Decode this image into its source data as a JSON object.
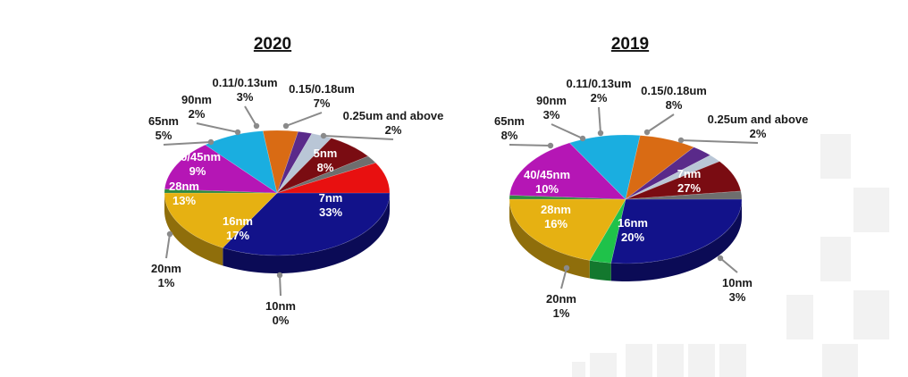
{
  "chart_data": [
    {
      "type": "pie",
      "title": "2020",
      "categories": [
        "7nm",
        "10nm",
        "16nm",
        "20nm",
        "28nm",
        "40/45nm",
        "65nm",
        "90nm",
        "0.11/0.13um",
        "0.15/0.18um",
        "0.25um and above",
        "5nm"
      ],
      "values": [
        33,
        0,
        17,
        1,
        13,
        9,
        5,
        2,
        3,
        7,
        2,
        8
      ],
      "value_labels": [
        "33%",
        "0%",
        "17%",
        "1%",
        "13%",
        "9%",
        "5%",
        "2%",
        "3%",
        "7%",
        "2%",
        "8%"
      ],
      "colors": [
        "#12128a",
        "#2fa84f",
        "#e6b112",
        "#2f8a3f",
        "#b516b5",
        "#1aaee0",
        "#d96b14",
        "#5a2a8a",
        "#b9c6d6",
        "#7a0c12",
        "#6e6e6e",
        "#e81010"
      ],
      "legend": "none"
    },
    {
      "type": "pie",
      "title": "2019",
      "categories": [
        "7nm",
        "10nm",
        "16nm",
        "20nm",
        "28nm",
        "40/45nm",
        "65nm",
        "90nm",
        "0.11/0.13um",
        "0.15/0.18um",
        "0.25um and above"
      ],
      "values": [
        27,
        3,
        20,
        1,
        16,
        10,
        8,
        3,
        2,
        8,
        2
      ],
      "value_labels": [
        "27%",
        "3%",
        "20%",
        "1%",
        "16%",
        "10%",
        "8%",
        "3%",
        "2%",
        "8%",
        "2%"
      ],
      "colors": [
        "#12128a",
        "#1fc24a",
        "#e6b112",
        "#2f8a3f",
        "#b516b5",
        "#1aaee0",
        "#d96b14",
        "#5a2a8a",
        "#b9c6d6",
        "#7a0c12",
        "#6e6e6e"
      ],
      "legend": "none"
    }
  ]
}
